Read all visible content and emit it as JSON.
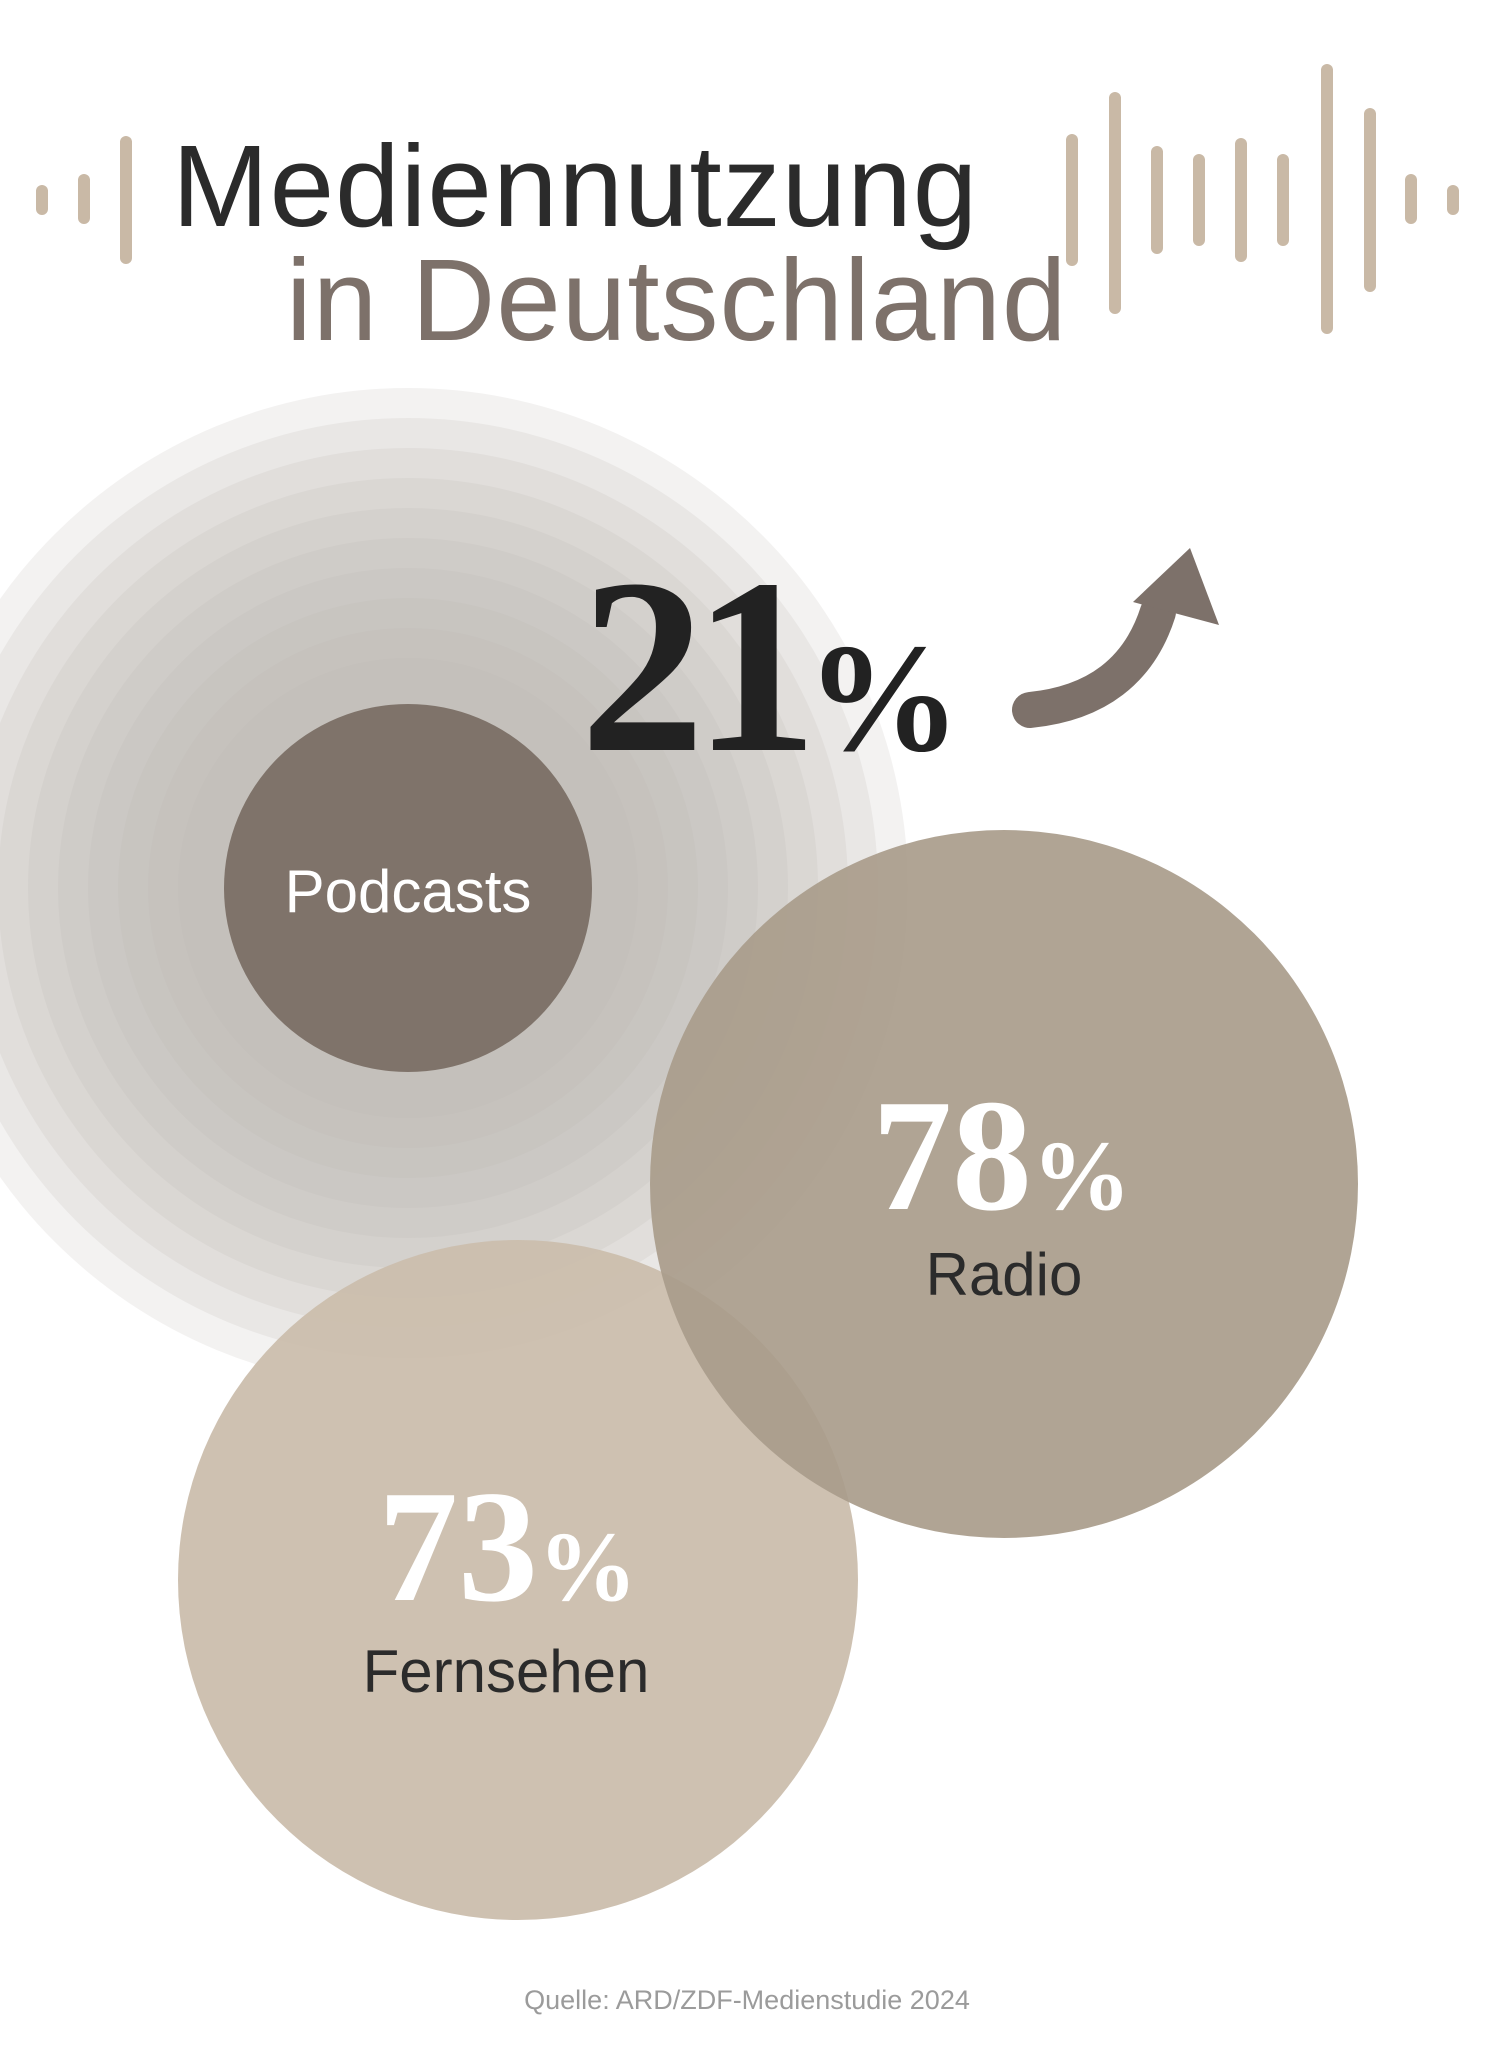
{
  "title": {
    "line1": "Mediennutzung",
    "line2": "in Deutschland"
  },
  "stats": {
    "podcasts": {
      "value": "21",
      "unit": "%",
      "label": "Podcasts",
      "trend": "up"
    },
    "radio": {
      "value": "78",
      "unit": "%",
      "label": "Radio"
    },
    "fernsehen": {
      "value": "73",
      "unit": "%",
      "label": "Fernsehen"
    }
  },
  "source": "Quelle: ARD/ZDF-Medienstudie 2024",
  "colors": {
    "podcasts_circle": "#7f736a",
    "radio_circle": "#afa292",
    "fernsehen_circle": "#cbbead",
    "ripple": "#b4ada8",
    "wave_bars": "#c9b9a6",
    "arrow": "#7d716a",
    "title_dark": "#2b2b2b",
    "title_light": "#7d716a"
  },
  "icons": {
    "arrow": "trend-up-arrow-icon",
    "waveform": "sound-wave-icon"
  }
}
